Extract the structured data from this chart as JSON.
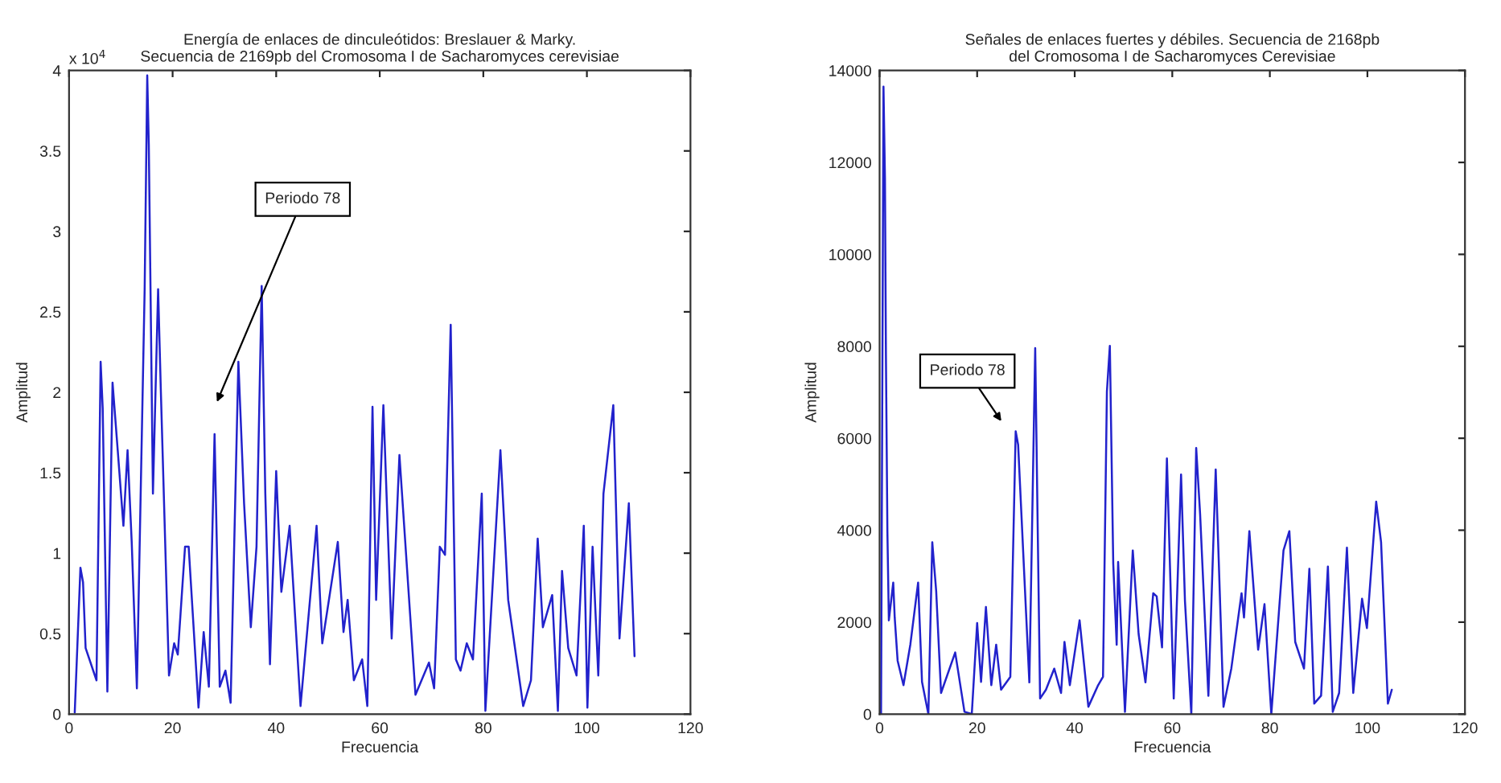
{
  "chart_data": [
    {
      "type": "line",
      "title": "Energía de enlaces de dinculeótidos: Breslauer & Marky.\nSecuencia de 2169pb del Cromosoma I de Sacharomyces cerevisiae",
      "xlabel": "Frecuencia",
      "ylabel": "Amplitud",
      "series": [
        {
          "color": "#2222cc",
          "x": [
            1.1,
            2.2,
            2.7,
            3.2,
            5.3,
            6.1,
            6.5,
            7.4,
            8.4,
            9.4,
            10.5,
            11.3,
            12.1,
            13.1,
            14.6,
            15.1,
            15.4,
            16.2,
            17.2,
            17.7,
            19.3,
            20.3,
            21,
            22.4,
            23.1,
            25,
            26,
            27,
            28.1,
            29.1,
            30.2,
            31.2,
            32.7,
            33.8,
            35.1,
            36.2,
            37.2,
            37.9,
            38.8,
            40,
            41,
            42.6,
            44.7,
            47.8,
            48.9,
            51.9,
            53,
            53.8,
            55,
            56.6,
            57.6,
            58.6,
            59.3,
            60.7,
            62.3,
            63.8,
            66.9,
            69.5,
            70.5,
            71.6,
            72.6,
            73.7,
            74.7,
            75.6,
            76.8,
            78,
            79.7,
            80.4,
            83.3,
            84.8,
            87.7,
            89.2,
            90.5,
            91.5,
            93.3,
            94.4,
            95.2,
            96.4,
            98,
            99.4,
            100.1,
            101.1,
            102.2,
            103.2,
            105.1,
            106.3,
            108.1,
            109.2
          ],
          "values": [
            0.01,
            0.91,
            0.82,
            0.41,
            0.21,
            2.19,
            1.9,
            0.14,
            2.06,
            1.64,
            1.17,
            1.64,
            1.07,
            0.16,
            2.64,
            3.97,
            3.54,
            1.37,
            2.64,
            2.04,
            0.24,
            0.44,
            0.37,
            1.04,
            1.04,
            0.04,
            0.51,
            0.17,
            1.74,
            0.17,
            0.27,
            0.07,
            2.19,
            1.31,
            0.54,
            1.04,
            2.66,
            1.37,
            0.31,
            1.51,
            0.76,
            1.17,
            0.05,
            1.17,
            0.44,
            1.07,
            0.51,
            0.71,
            0.21,
            0.34,
            0.05,
            1.91,
            0.71,
            1.92,
            0.47,
            1.61,
            0.12,
            0.32,
            0.16,
            1.04,
            0.99,
            2.42,
            0.34,
            0.27,
            0.44,
            0.34,
            1.37,
            0.02,
            1.64,
            0.71,
            0.05,
            0.21,
            1.09,
            0.54,
            0.74,
            0.02,
            0.89,
            0.41,
            0.24,
            1.17,
            0.04,
            1.04,
            0.24,
            1.37,
            1.92,
            0.47,
            1.31,
            0.36
          ]
        }
      ],
      "xlim": [
        0,
        120
      ],
      "xticks": [
        0,
        20,
        40,
        60,
        80,
        100,
        120
      ],
      "ylim": [
        0,
        4
      ],
      "yticks": [
        0,
        0.5,
        1,
        1.5,
        2,
        2.5,
        3,
        3.5,
        4
      ],
      "annotations": [
        "x 10$^{4}$",
        "Periodo 78"
      ],
      "grid": false
    },
    {
      "type": "line",
      "title": "Señales de enlaces fuertes y débiles. Secuencia de 2168pb\ndel Cromosoma I de Sacharomyces Cerevisiae",
      "xlabel": "Frecuencia",
      "ylabel": "Amplitud",
      "series": [
        {
          "color": "#2222cc",
          "x": [
            0.3,
            0.8,
            1.1,
            1.3,
            1.6,
            1.9,
            2.8,
            3.1,
            3.7,
            4.9,
            6.3,
            7.9,
            8.7,
            10,
            10.8,
            11.6,
            12.6,
            15.5,
            17.4,
            18.9,
            20,
            20.8,
            21.8,
            22.9,
            23.9,
            24.9,
            26.8,
            27.9,
            28.4,
            30.7,
            31.9,
            32.9,
            34.1,
            35.8,
            37.2,
            37.9,
            39,
            41,
            42.8,
            44.8,
            45.8,
            46.6,
            47.2,
            47.9,
            48.6,
            48.9,
            50.3,
            51.9,
            53.1,
            54.5,
            56.1,
            56.8,
            57.9,
            58.9,
            60.3,
            61.8,
            62.6,
            63.9,
            64.9,
            65.7,
            67.4,
            68.9,
            69.4,
            70.5,
            72.1,
            74.2,
            74.7,
            75.8,
            77.6,
            78.9,
            80.3,
            82.8,
            84,
            85.2,
            87,
            88.1,
            89.1,
            90.5,
            91.9,
            92.9,
            94.2,
            95.8,
            97.1,
            98.9,
            99.9,
            101.8,
            102.8,
            104.2,
            105
          ],
          "values": [
            0,
            13650,
            11660,
            7800,
            3980,
            2040,
            2860,
            2100,
            1160,
            630,
            1510,
            2860,
            700,
            0,
            3740,
            2680,
            460,
            1340,
            50,
            0,
            1980,
            700,
            2330,
            630,
            1510,
            530,
            810,
            6150,
            5860,
            690,
            7960,
            340,
            530,
            990,
            460,
            1570,
            630,
            2040,
            160,
            630,
            810,
            7020,
            8010,
            3270,
            1510,
            3310,
            50,
            3560,
            1740,
            690,
            2630,
            2560,
            1450,
            5560,
            340,
            5210,
            2460,
            0,
            5790,
            4360,
            400,
            5320,
            3740,
            160,
            990,
            2630,
            2100,
            3980,
            1400,
            2390,
            0,
            3560,
            3980,
            1570,
            990,
            3160,
            230,
            400,
            3210,
            50,
            460,
            3620,
            460,
            2510,
            1870,
            4620,
            3740,
            230,
            530
          ]
        }
      ],
      "xlim": [
        0,
        120
      ],
      "xticks": [
        0,
        20,
        40,
        60,
        80,
        100,
        120
      ],
      "ylim": [
        0,
        14000
      ],
      "yticks": [
        0,
        2000,
        4000,
        6000,
        8000,
        10000,
        12000,
        14000
      ],
      "annotations": [
        "Periodo 78"
      ],
      "grid": false
    }
  ]
}
